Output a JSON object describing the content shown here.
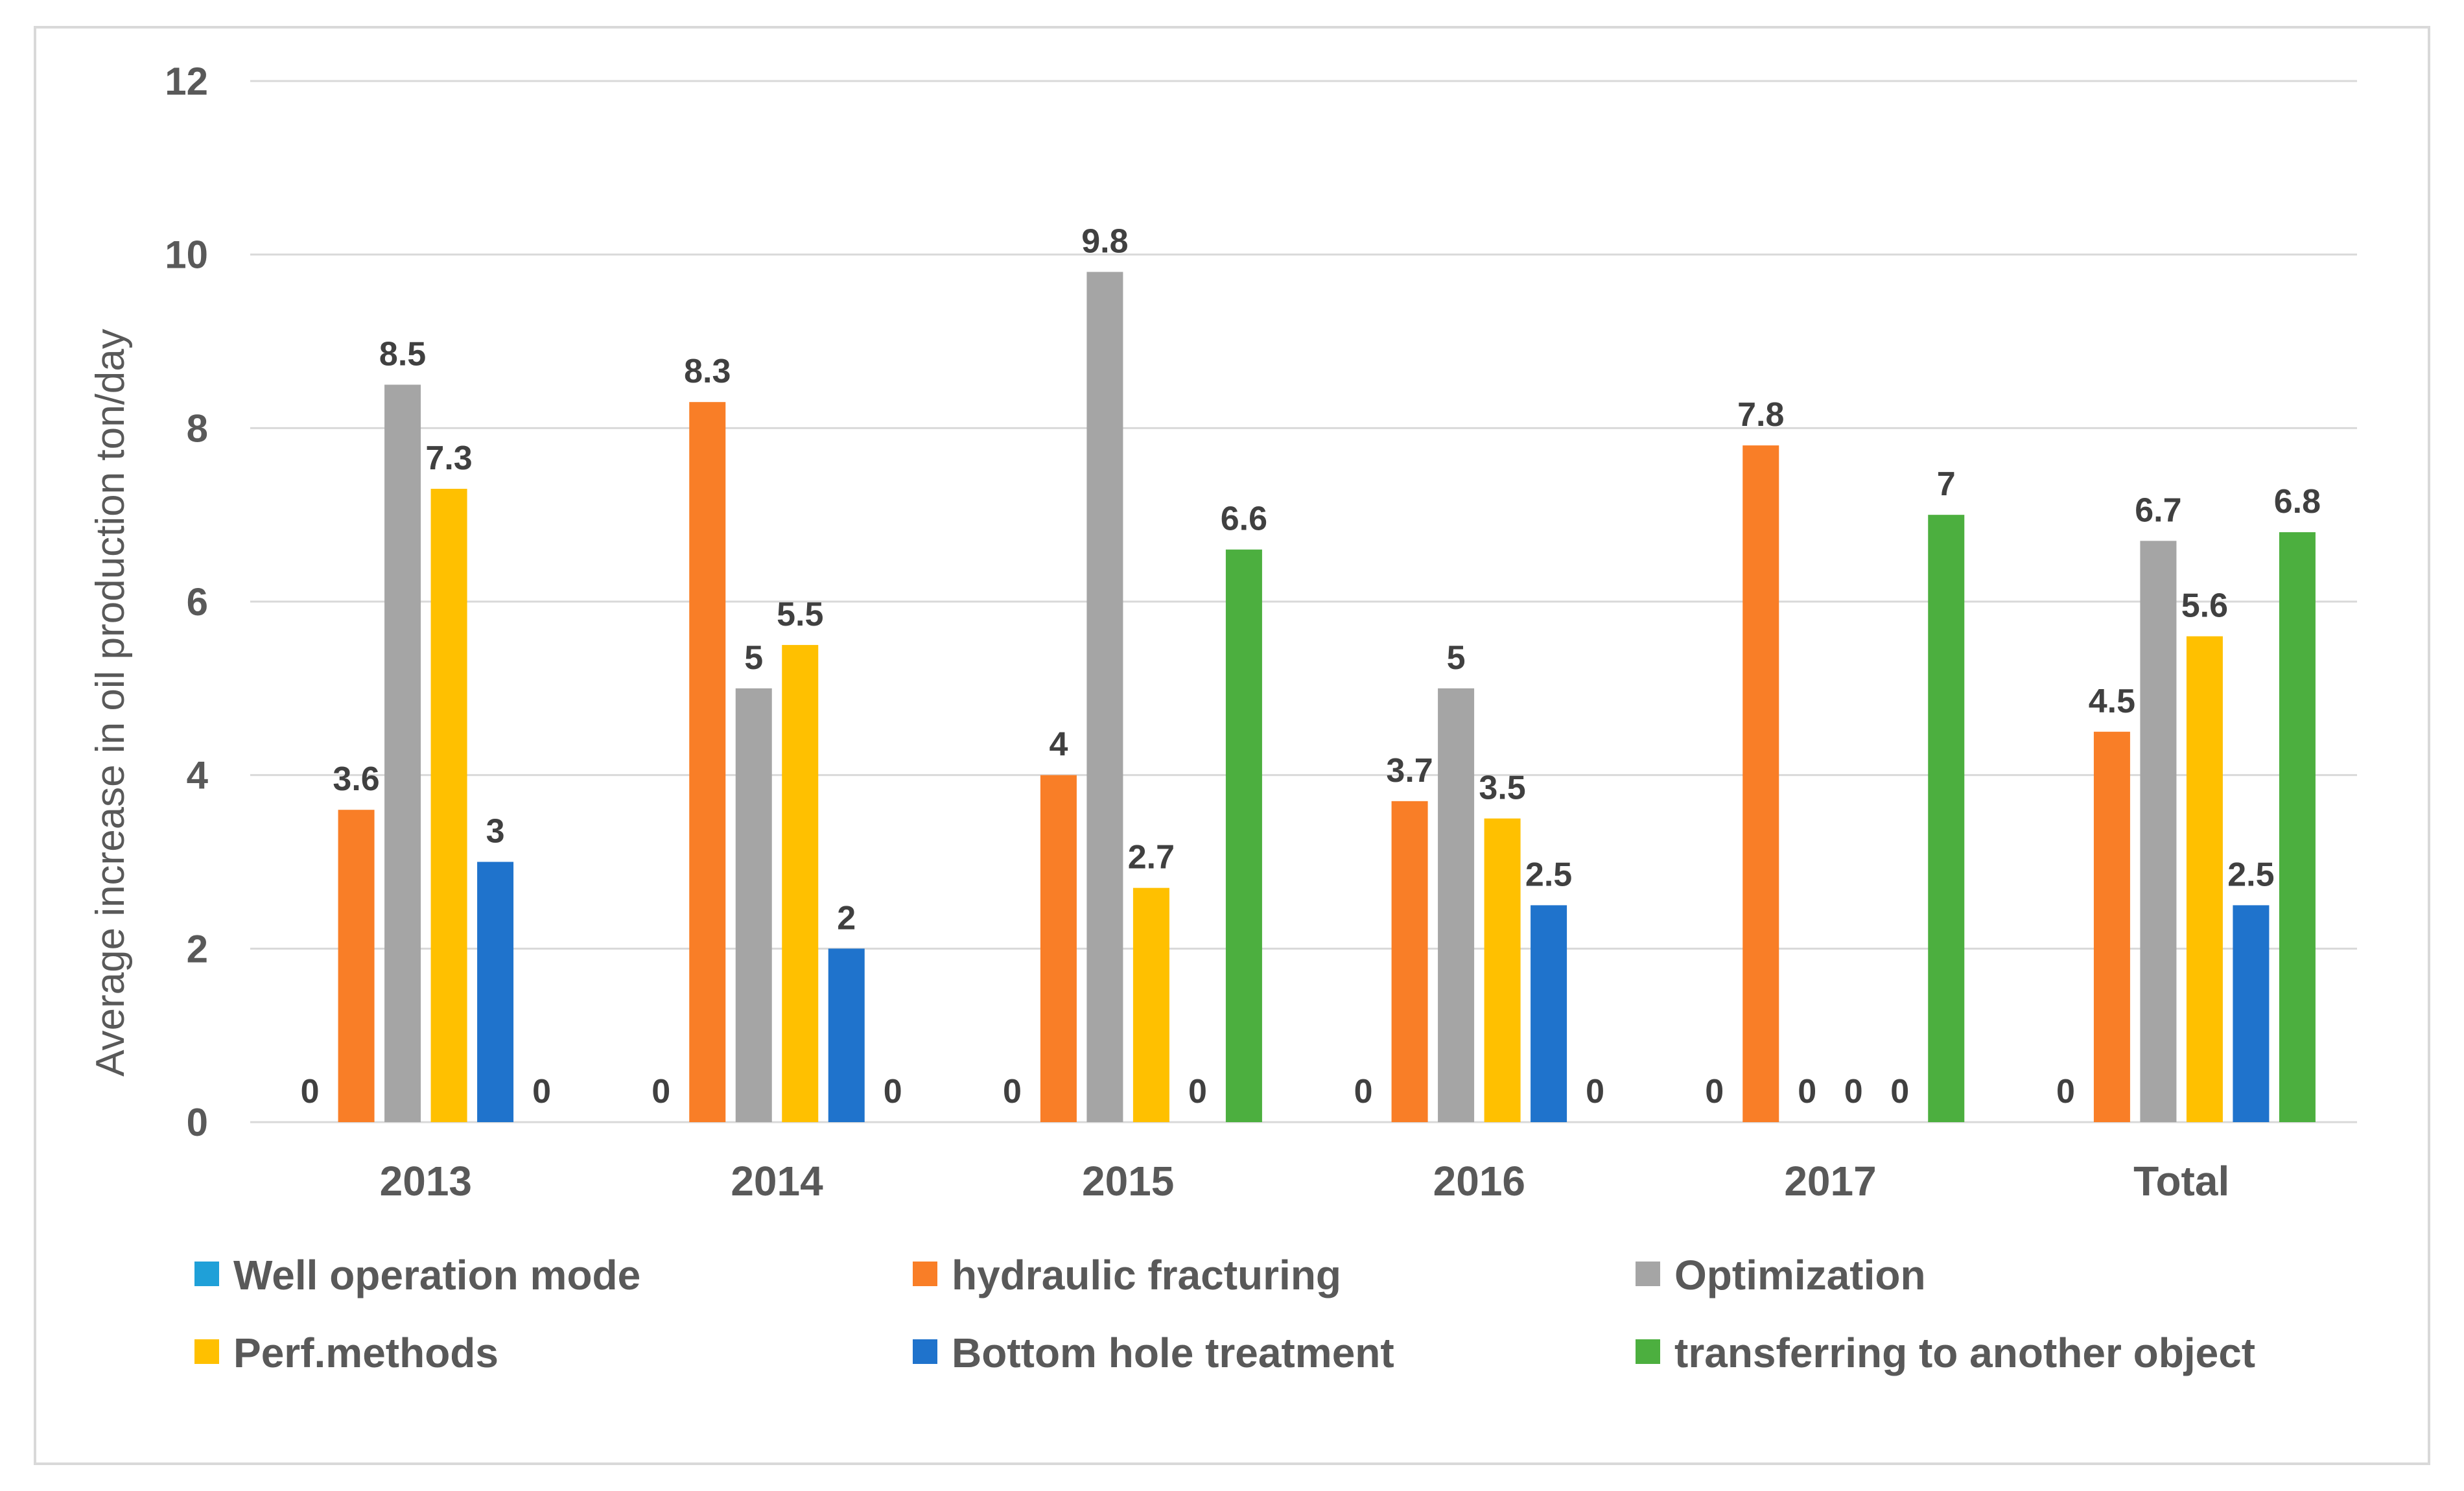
{
  "chart_data": {
    "type": "bar",
    "title": "",
    "xlabel": "",
    "ylabel": "Average increase in oil production ton/day",
    "ylim": [
      0,
      12
    ],
    "yticks": [
      0,
      2,
      4,
      6,
      8,
      10,
      12
    ],
    "grid": true,
    "legend_position": "bottom",
    "categories": [
      "2013",
      "2014",
      "2015",
      "2016",
      "2017",
      "Total"
    ],
    "series": [
      {
        "name": "Well operation mode",
        "color": "#1FA0D8",
        "values": [
          0,
          0,
          0,
          0,
          0,
          0
        ]
      },
      {
        "name": "hydraulic fracturing",
        "color": "#F97E27",
        "values": [
          3.6,
          8.3,
          4,
          3.7,
          7.8,
          4.5
        ]
      },
      {
        "name": "Optimization",
        "color": "#A5A5A5",
        "values": [
          8.5,
          5,
          9.8,
          5,
          0,
          6.7
        ]
      },
      {
        "name": "Perf.methods",
        "color": "#FFC000",
        "values": [
          7.3,
          5.5,
          2.7,
          3.5,
          0,
          5.6
        ]
      },
      {
        "name": "Bottom hole treatment",
        "color": "#1F73CC",
        "values": [
          3,
          2,
          0,
          2.5,
          0,
          2.5
        ]
      },
      {
        "name": "transferring to another object",
        "color": "#4CAF3F",
        "values": [
          0,
          0,
          6.6,
          0,
          7,
          6.8
        ]
      }
    ]
  }
}
